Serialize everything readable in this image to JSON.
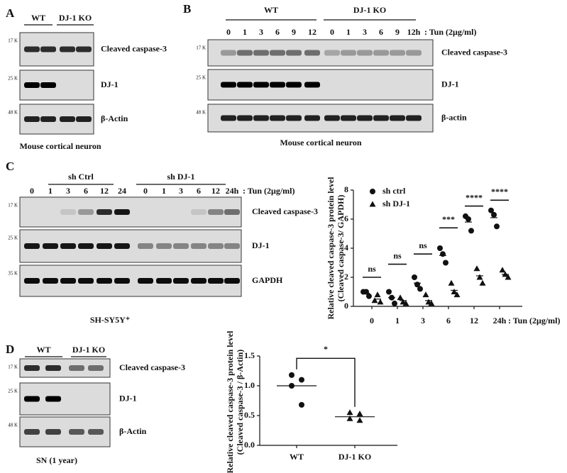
{
  "panels": [
    {
      "letter": "A",
      "groups": [
        "WT",
        "DJ-1 KO"
      ],
      "rows": [
        {
          "marker": "17 K",
          "label": "Cleaved caspase-3"
        },
        {
          "marker": "25 K",
          "label": "DJ-1"
        },
        {
          "marker": "48 K",
          "label": "β-Actin"
        }
      ],
      "caption": "Mouse cortical neuron"
    },
    {
      "letter": "B",
      "groups": [
        "WT",
        "DJ-1 KO"
      ],
      "lanes": [
        "0",
        "1",
        "3",
        "6",
        "9",
        "12",
        "0",
        "1",
        "3",
        "6",
        "9",
        "12h"
      ],
      "treatment": ": Tun (2μg/ml)",
      "rows": [
        {
          "marker": "17 K",
          "label": "Cleaved caspase-3"
        },
        {
          "marker": "25 K",
          "label": "DJ-1"
        },
        {
          "marker": "48 K",
          "label": "β-actin"
        }
      ],
      "caption": "Mouse cortical neuron"
    },
    {
      "letter": "C",
      "groups": [
        "sh Ctrl",
        "sh DJ-1"
      ],
      "lanes": [
        "0",
        "1",
        "3",
        "6",
        "12",
        "24",
        "0",
        "1",
        "3",
        "6",
        "12",
        "24h"
      ],
      "treatment": ": Tun (2μg/ml)",
      "rows": [
        {
          "marker": "17 K",
          "label": "Cleaved caspase-3"
        },
        {
          "marker": "25 K",
          "label": "DJ-1"
        },
        {
          "marker": "35 K",
          "label": "GAPDH"
        }
      ],
      "caption": "SH-SY5Y⁺"
    },
    {
      "letter": "D",
      "groups": [
        "WT",
        "DJ-1 KO"
      ],
      "rows": [
        {
          "marker": "17 K",
          "label": "Cleaved caspase-3"
        },
        {
          "marker": "25 K",
          "label": "DJ-1"
        },
        {
          "marker": "48 K",
          "label": "β-Actin"
        }
      ],
      "caption": "SN (1 year)"
    }
  ],
  "chart_data": [
    {
      "type": "dot",
      "categories": [
        "0",
        "1",
        "3",
        "6",
        "12",
        "24h"
      ],
      "x_label": ": Tun (2μg/ml)",
      "ylabel": [
        "Relative cleaved caspase-3 protein level",
        "(Cleaved caspase-3/ GAPDH)"
      ],
      "ylim": [
        0,
        8
      ],
      "yticks": [
        0,
        2,
        4,
        6,
        8
      ],
      "legend": "top-left",
      "series": [
        {
          "name": "sh ctrl",
          "marker": "circle",
          "color": "#111111",
          "values": [
            [
              1.0,
              1.0,
              0.7
            ],
            [
              1.0,
              0.6,
              0.2
            ],
            [
              2.0,
              1.5,
              1.2
            ],
            [
              4.0,
              3.6,
              3.0
            ],
            [
              6.2,
              6.0,
              5.2
            ],
            [
              6.6,
              6.3,
              5.5
            ]
          ],
          "means": [
            0.9,
            0.6,
            1.6,
            3.5,
            5.8,
            6.1
          ]
        },
        {
          "name": "sh DJ-1",
          "marker": "triangle",
          "color": "#111111",
          "values": [
            [
              0.4,
              0.8,
              0.3
            ],
            [
              0.6,
              0.3,
              0.2
            ],
            [
              0.8,
              0.3,
              0.2
            ],
            [
              1.6,
              1.0,
              0.8
            ],
            [
              2.6,
              2.0,
              1.6
            ],
            [
              2.5,
              2.2,
              2.0
            ]
          ],
          "means": [
            0.5,
            0.4,
            0.4,
            1.1,
            2.1,
            2.2
          ]
        }
      ],
      "annotations": [
        {
          "text": "ns",
          "y": 2.0
        },
        {
          "text": "ns",
          "y": 2.9
        },
        {
          "text": "ns",
          "y": 3.6
        },
        {
          "text": "***",
          "y": 5.4
        },
        {
          "text": "****",
          "y": 6.9
        },
        {
          "text": "****",
          "y": 7.3
        }
      ]
    },
    {
      "type": "dot",
      "categories": [
        "WT",
        "DJ-1 KO"
      ],
      "ylabel": [
        "Relative cleaved caspase-3 protein level",
        "(Cleaved caspase-3 / β-Actin)"
      ],
      "ylim": [
        0,
        1.5
      ],
      "yticks": [
        {
          "value": 0,
          "label": "0.0"
        },
        0.5,
        {
          "value": 1,
          "label": "1.0"
        },
        1.5
      ],
      "series": [
        {
          "marker": "circle",
          "color": "#111111",
          "values": [
            [
              1.18,
              1.1,
              1.0,
              0.68
            ],
            null
          ],
          "means": [
            1.0,
            null
          ]
        },
        {
          "marker": "triangle",
          "color": "#111111",
          "values": [
            null,
            [
              0.55,
              0.53,
              0.45,
              0.42
            ]
          ],
          "means": [
            null,
            0.48
          ]
        }
      ],
      "annotations": [
        {
          "text": "*",
          "y": 1.46,
          "style": "bracket"
        }
      ]
    }
  ]
}
